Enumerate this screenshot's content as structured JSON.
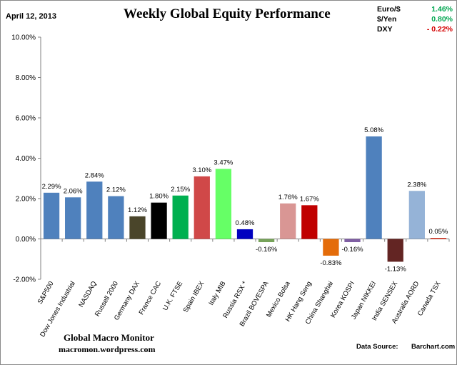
{
  "header": {
    "date": "April 12, 2013",
    "title": "Weekly Global Equity Performance"
  },
  "fx": [
    {
      "name": "Euro/$",
      "value": "1.46%",
      "color": "#00a650"
    },
    {
      "name": "$/Yen",
      "value": "0.80%",
      "color": "#00a650"
    },
    {
      "name": "DXY",
      "value": "- 0.22%",
      "color": "#d40000"
    }
  ],
  "footer": {
    "brand": "Global Macro Monitor",
    "url": "macromon.wordpress.com",
    "source_label": "Data Source:",
    "source_value": "Barchart.com"
  },
  "chart_data": {
    "type": "bar",
    "ylim": [
      -2,
      10
    ],
    "yticks": [
      -2,
      0,
      2,
      4,
      6,
      8,
      10
    ],
    "ytick_labels": [
      "-2.00%",
      "0.00%",
      "2.00%",
      "4.00%",
      "6.00%",
      "8.00%",
      "10.00%"
    ],
    "grid": false,
    "categories": [
      "S&P500",
      "Dow Jones Industrial",
      "NASDAQ",
      "Russell 2000",
      "Germany DAX",
      "France CAC",
      "U.K. FTSE",
      "Spain IBEX",
      "Italy MIB",
      "Russia RSX *",
      "Brazil BOVESPA",
      "Mexico Bolsa",
      "HK Hang Seng",
      "China Shanghai",
      "Korea KOSPI",
      "Japan NIKKEI",
      "India SENSEX",
      "Australia AORD",
      "Canada TSX"
    ],
    "values": [
      2.29,
      2.06,
      2.84,
      2.12,
      1.12,
      1.8,
      2.15,
      3.1,
      3.47,
      0.48,
      -0.16,
      1.76,
      1.67,
      -0.83,
      -0.16,
      5.08,
      -1.13,
      2.38,
      0.05
    ],
    "data_labels": [
      "2.29%",
      "2.06%",
      "2.84%",
      "2.12%",
      "1.12%",
      "1.80%",
      "2.15%",
      "3.10%",
      "3.47%",
      "0.48%",
      "-0.16%",
      "1.76%",
      "1.67%",
      "-0.83%",
      "-0.16%",
      "5.08%",
      "-1.13%",
      "2.38%",
      "0.05%"
    ],
    "colors": [
      "#4f81bd",
      "#4f81bd",
      "#4f81bd",
      "#4f81bd",
      "#4a452a",
      "#000000",
      "#00b050",
      "#d04848",
      "#66ff66",
      "#0000c0",
      "#77a35a",
      "#d99694",
      "#c00000",
      "#e46c0a",
      "#7f5fa3",
      "#4f81bd",
      "#632523",
      "#95b3d7",
      "#e0301e"
    ]
  }
}
